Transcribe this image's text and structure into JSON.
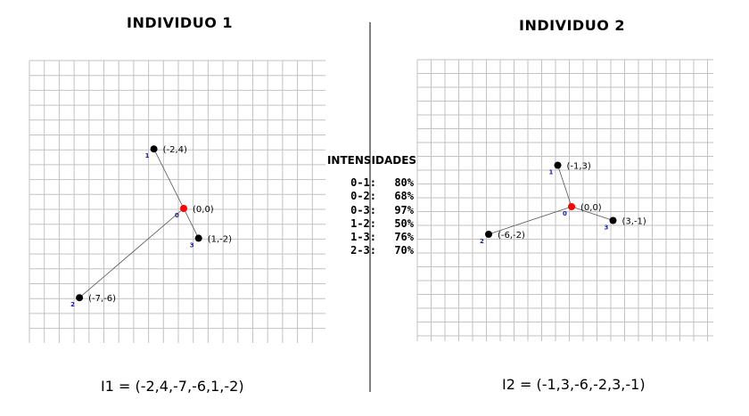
{
  "intensities_title": "INTENSIDADES",
  "intensities": [
    {
      "pair": "0-1:",
      "value": "80%"
    },
    {
      "pair": "0-2:",
      "value": "68%"
    },
    {
      "pair": "0-3:",
      "value": "97%"
    },
    {
      "pair": "1-2:",
      "value": "50%"
    },
    {
      "pair": "1-3:",
      "value": "76%"
    },
    {
      "pair": "2-3:",
      "value": "70%"
    }
  ],
  "individuals": [
    {
      "title": "INDIVIDUO 1",
      "formula": "I1 = (-2,4,-7,-6,1,-2)",
      "nodes": [
        {
          "id": "0",
          "x": 0,
          "y": 0,
          "label": "(0,0)",
          "origin": true
        },
        {
          "id": "1",
          "x": -2,
          "y": 4,
          "label": "(-2,4)"
        },
        {
          "id": "2",
          "x": -7,
          "y": -6,
          "label": "(-7,-6)"
        },
        {
          "id": "3",
          "x": 1,
          "y": -2,
          "label": "(1,-2)"
        }
      ],
      "edges": [
        [
          "0",
          "1"
        ],
        [
          "0",
          "2"
        ],
        [
          "0",
          "3"
        ]
      ]
    },
    {
      "title": "INDIVIDUO 2",
      "formula": "I2 = (-1,3,-6,-2,3,-1)",
      "nodes": [
        {
          "id": "0",
          "x": 0,
          "y": 0,
          "label": "(0,0)",
          "origin": true
        },
        {
          "id": "1",
          "x": -1,
          "y": 3,
          "label": "(-1,3)"
        },
        {
          "id": "2",
          "x": -6,
          "y": -2,
          "label": "(-6,-2)"
        },
        {
          "id": "3",
          "x": 3,
          "y": -1,
          "label": "(3,-1)"
        }
      ],
      "edges": [
        [
          "0",
          "1"
        ],
        [
          "0",
          "2"
        ],
        [
          "0",
          "3"
        ]
      ]
    }
  ]
}
